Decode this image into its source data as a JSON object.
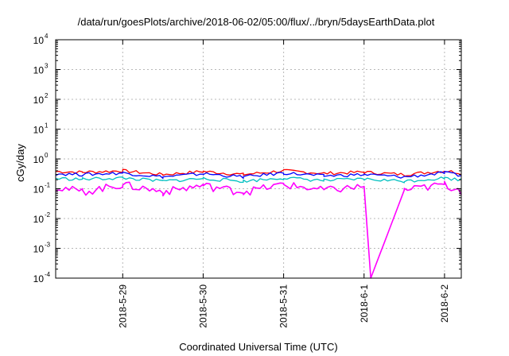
{
  "chart_data": {
    "type": "line",
    "title": "/data/run/goesPlots/archive/2018-06-02/05:00/flux/../bryn/5daysEarthData.plot",
    "xlabel": "Coordinated Universal Time (UTC)",
    "ylabel": "cGy/day",
    "yscale": "log",
    "ylim": [
      0.0001,
      10000
    ],
    "xlim": [
      "2018-05-28T04:00",
      "2018-06-02T05:00"
    ],
    "grid": true,
    "x_ticks": [
      "2018-5-29",
      "2018-5-30",
      "2018-5-31",
      "2018-6-1",
      "2018-6-2"
    ],
    "y_ticks": [
      {
        "base": "10",
        "exp": "-4"
      },
      {
        "base": "10",
        "exp": "-3"
      },
      {
        "base": "10",
        "exp": "-2"
      },
      {
        "base": "10",
        "exp": "-1"
      },
      {
        "base": "10",
        "exp": "0"
      },
      {
        "base": "10",
        "exp": "1"
      },
      {
        "base": "10",
        "exp": "2"
      },
      {
        "base": "10",
        "exp": "3"
      },
      {
        "base": "10",
        "exp": "4"
      }
    ],
    "series": [
      {
        "color": "#ff0000",
        "x": [
          "2018-05-28T04:00",
          "2018-05-28T12:00",
          "2018-05-29T00:00",
          "2018-05-29T12:00",
          "2018-05-30T00:00",
          "2018-05-30T12:00",
          "2018-05-31T00:00",
          "2018-05-31T12:00",
          "2018-06-01T00:00",
          "2018-06-01T12:00",
          "2018-06-02T00:00",
          "2018-06-02T05:00"
        ],
        "y": [
          0.38,
          0.36,
          0.4,
          0.3,
          0.38,
          0.3,
          0.4,
          0.33,
          0.36,
          0.3,
          0.4,
          0.34
        ]
      },
      {
        "color": "#0000ff",
        "x": [
          "2018-05-28T04:00",
          "2018-05-28T12:00",
          "2018-05-29T00:00",
          "2018-05-29T12:00",
          "2018-05-30T00:00",
          "2018-05-30T12:00",
          "2018-05-31T00:00",
          "2018-05-31T12:00",
          "2018-06-01T00:00",
          "2018-06-01T12:00",
          "2018-06-02T00:00",
          "2018-06-02T05:00"
        ],
        "y": [
          0.32,
          0.3,
          0.34,
          0.25,
          0.32,
          0.25,
          0.34,
          0.27,
          0.3,
          0.25,
          0.34,
          0.28
        ]
      },
      {
        "color": "#00c0c0",
        "x": [
          "2018-05-28T04:00",
          "2018-05-28T12:00",
          "2018-05-29T00:00",
          "2018-05-29T12:00",
          "2018-05-30T00:00",
          "2018-05-30T12:00",
          "2018-05-31T00:00",
          "2018-05-31T12:00",
          "2018-06-01T00:00",
          "2018-06-01T12:00",
          "2018-06-02T00:00",
          "2018-06-02T05:00"
        ],
        "y": [
          0.22,
          0.21,
          0.23,
          0.18,
          0.22,
          0.18,
          0.23,
          0.19,
          0.21,
          0.18,
          0.23,
          0.2
        ]
      },
      {
        "color": "#ff00ff",
        "x": [
          "2018-05-28T04:00",
          "2018-05-28T12:00",
          "2018-05-29T00:00",
          "2018-05-29T12:00",
          "2018-05-30T00:00",
          "2018-05-30T12:00",
          "2018-05-31T00:00",
          "2018-05-31T12:00",
          "2018-06-01T00:00",
          "2018-06-01T02:00",
          "2018-06-01T12:00",
          "2018-06-02T00:00",
          "2018-06-02T05:00"
        ],
        "y": [
          0.12,
          0.08,
          0.14,
          0.08,
          0.13,
          0.08,
          0.14,
          0.09,
          0.12,
          0.0001,
          0.09,
          0.14,
          0.09
        ]
      }
    ]
  }
}
